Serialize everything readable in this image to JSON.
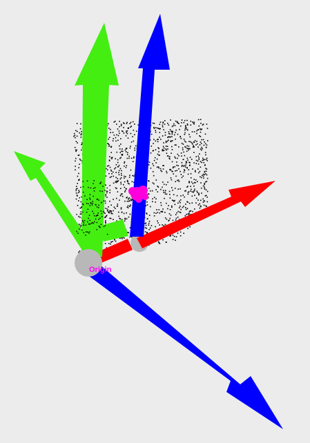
{
  "viewer": {
    "origin_label": "Origin"
  },
  "colors": {
    "background": "#ececec",
    "x_axis": "#ff0000",
    "y_axis": "#44ee11",
    "z_axis": "#0000ff",
    "origin_sphere": "#b8b8b8",
    "origin_label": "#ff00ff",
    "marker": "#ff00dd",
    "points": "#000000"
  }
}
